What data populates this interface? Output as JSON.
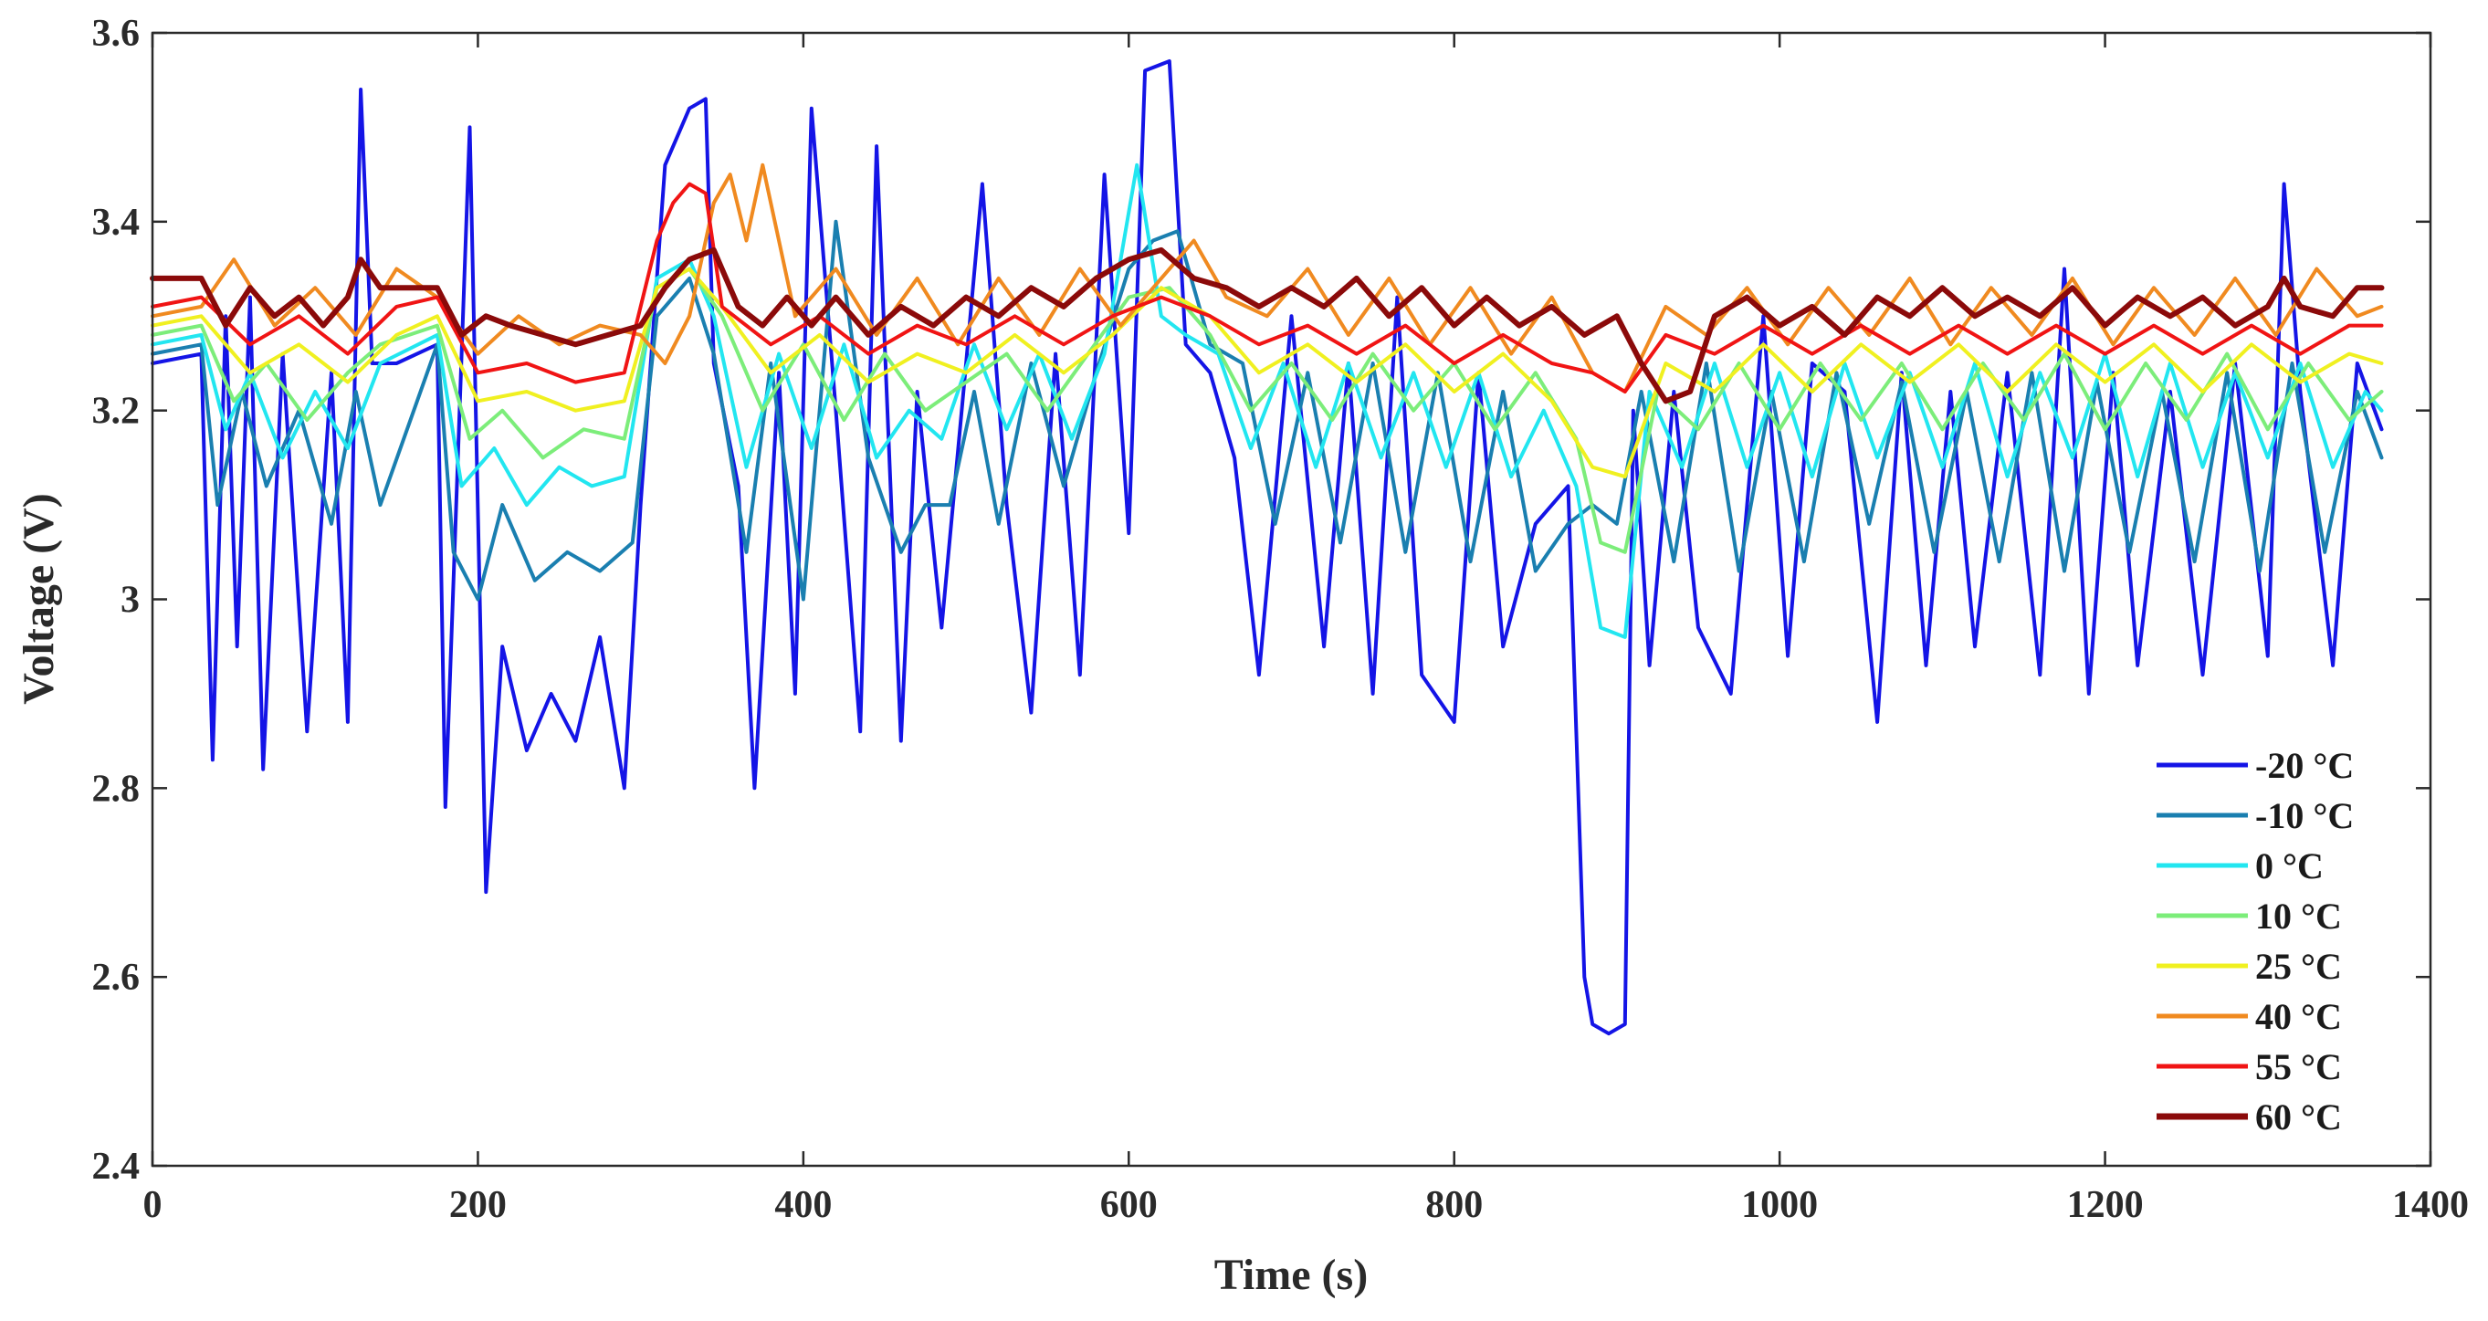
{
  "chart_data": {
    "type": "line",
    "title": "",
    "xlabel": "Time (s)",
    "ylabel": "Voltage (V)",
    "xlim": [
      0,
      1400
    ],
    "ylim": [
      2.4,
      3.6
    ],
    "xticks": [
      0,
      200,
      400,
      600,
      800,
      1000,
      1200,
      1400
    ],
    "yticks": [
      2.4,
      2.6,
      2.8,
      3.0,
      3.2,
      3.4,
      3.6
    ],
    "xtick_labels": [
      "0",
      "200",
      "400",
      "600",
      "800",
      "1000",
      "1200",
      "1400"
    ],
    "ytick_labels": [
      "2.4",
      "2.6",
      "2.8",
      "3",
      "3.2",
      "3.4",
      "3.6"
    ],
    "grid": false,
    "legend_position": "bottom-right",
    "series": [
      {
        "name": "-20 °C",
        "color": "#1414e6",
        "x": [
          0,
          30,
          37,
          45,
          52,
          60,
          68,
          80,
          95,
          110,
          120,
          128,
          135,
          150,
          175,
          180,
          195,
          205,
          215,
          230,
          245,
          260,
          275,
          290,
          300,
          315,
          330,
          340,
          345,
          360,
          370,
          385,
          395,
          405,
          420,
          435,
          445,
          460,
          470,
          485,
          500,
          510,
          525,
          540,
          555,
          570,
          585,
          600,
          610,
          625,
          635,
          650,
          665,
          680,
          700,
          720,
          735,
          750,
          765,
          780,
          800,
          815,
          830,
          850,
          870,
          880,
          885,
          895,
          905,
          910,
          920,
          935,
          950,
          970,
          990,
          1005,
          1020,
          1040,
          1060,
          1075,
          1090,
          1105,
          1120,
          1140,
          1160,
          1175,
          1190,
          1205,
          1220,
          1240,
          1260,
          1280,
          1300,
          1310,
          1320,
          1340,
          1355,
          1370
        ],
        "y": [
          3.25,
          3.26,
          2.83,
          3.3,
          2.95,
          3.32,
          2.82,
          3.26,
          2.86,
          3.24,
          2.87,
          3.54,
          3.25,
          3.25,
          3.27,
          2.78,
          3.5,
          2.69,
          2.95,
          2.84,
          2.9,
          2.85,
          2.96,
          2.8,
          3.1,
          3.46,
          3.52,
          3.53,
          3.25,
          3.12,
          2.8,
          3.24,
          2.9,
          3.52,
          3.2,
          2.86,
          3.48,
          2.85,
          3.22,
          2.97,
          3.25,
          3.44,
          3.1,
          2.88,
          3.26,
          2.92,
          3.45,
          3.07,
          3.56,
          3.57,
          3.27,
          3.24,
          3.15,
          2.92,
          3.3,
          2.95,
          3.25,
          2.9,
          3.32,
          2.92,
          2.87,
          3.24,
          2.95,
          3.08,
          3.12,
          2.6,
          2.55,
          2.54,
          2.55,
          3.2,
          2.93,
          3.22,
          2.97,
          2.9,
          3.3,
          2.94,
          3.25,
          3.22,
          2.87,
          3.24,
          2.93,
          3.22,
          2.95,
          3.24,
          2.92,
          3.35,
          2.9,
          3.24,
          2.93,
          3.22,
          2.92,
          3.25,
          2.94,
          3.44,
          3.22,
          2.93,
          3.25,
          3.18
        ]
      },
      {
        "name": "-10 °C",
        "color": "#1a7fb0",
        "x": [
          0,
          30,
          40,
          55,
          70,
          90,
          110,
          125,
          140,
          175,
          185,
          200,
          215,
          235,
          255,
          275,
          295,
          310,
          330,
          345,
          365,
          380,
          400,
          420,
          440,
          460,
          475,
          490,
          505,
          520,
          540,
          560,
          580,
          600,
          615,
          630,
          650,
          670,
          690,
          710,
          730,
          750,
          770,
          790,
          810,
          830,
          850,
          870,
          885,
          900,
          915,
          935,
          955,
          975,
          995,
          1015,
          1035,
          1055,
          1075,
          1095,
          1115,
          1135,
          1155,
          1175,
          1195,
          1215,
          1235,
          1255,
          1275,
          1295,
          1315,
          1335,
          1355,
          1370
        ],
        "y": [
          3.26,
          3.27,
          3.1,
          3.22,
          3.12,
          3.2,
          3.08,
          3.22,
          3.1,
          3.27,
          3.05,
          3.0,
          3.1,
          3.02,
          3.05,
          3.03,
          3.06,
          3.3,
          3.34,
          3.26,
          3.05,
          3.25,
          3.0,
          3.4,
          3.15,
          3.05,
          3.1,
          3.1,
          3.22,
          3.08,
          3.25,
          3.12,
          3.24,
          3.35,
          3.38,
          3.39,
          3.27,
          3.25,
          3.08,
          3.24,
          3.06,
          3.25,
          3.05,
          3.24,
          3.04,
          3.22,
          3.03,
          3.08,
          3.1,
          3.08,
          3.22,
          3.04,
          3.25,
          3.03,
          3.22,
          3.04,
          3.24,
          3.08,
          3.23,
          3.05,
          3.22,
          3.04,
          3.24,
          3.03,
          3.23,
          3.05,
          3.22,
          3.04,
          3.24,
          3.03,
          3.25,
          3.05,
          3.22,
          3.15
        ]
      },
      {
        "name": "0 °C",
        "color": "#22e6f0",
        "x": [
          0,
          30,
          45,
          60,
          80,
          100,
          120,
          140,
          175,
          190,
          210,
          230,
          250,
          270,
          290,
          310,
          330,
          345,
          365,
          385,
          405,
          425,
          445,
          465,
          485,
          505,
          525,
          545,
          565,
          585,
          605,
          620,
          635,
          655,
          675,
          695,
          715,
          735,
          755,
          775,
          795,
          815,
          835,
          855,
          875,
          890,
          905,
          920,
          940,
          960,
          980,
          1000,
          1020,
          1040,
          1060,
          1080,
          1100,
          1120,
          1140,
          1160,
          1180,
          1200,
          1220,
          1240,
          1260,
          1280,
          1300,
          1320,
          1340,
          1360,
          1370
        ],
        "y": [
          3.27,
          3.28,
          3.18,
          3.24,
          3.15,
          3.22,
          3.16,
          3.25,
          3.28,
          3.12,
          3.16,
          3.1,
          3.14,
          3.12,
          3.13,
          3.34,
          3.36,
          3.3,
          3.14,
          3.26,
          3.16,
          3.27,
          3.15,
          3.2,
          3.17,
          3.27,
          3.18,
          3.26,
          3.17,
          3.26,
          3.46,
          3.3,
          3.28,
          3.26,
          3.16,
          3.25,
          3.14,
          3.25,
          3.15,
          3.24,
          3.14,
          3.24,
          3.13,
          3.2,
          3.12,
          2.97,
          2.96,
          3.22,
          3.14,
          3.25,
          3.14,
          3.24,
          3.13,
          3.25,
          3.15,
          3.24,
          3.14,
          3.25,
          3.13,
          3.24,
          3.15,
          3.26,
          3.13,
          3.25,
          3.14,
          3.24,
          3.15,
          3.25,
          3.14,
          3.22,
          3.2
        ]
      },
      {
        "name": "10 °C",
        "color": "#7ced7a",
        "x": [
          0,
          30,
          50,
          70,
          95,
          120,
          140,
          175,
          195,
          215,
          240,
          265,
          290,
          310,
          330,
          350,
          375,
          400,
          425,
          450,
          475,
          500,
          525,
          550,
          575,
          600,
          625,
          650,
          675,
          700,
          725,
          750,
          775,
          800,
          825,
          850,
          875,
          890,
          905,
          925,
          950,
          975,
          1000,
          1025,
          1050,
          1075,
          1100,
          1125,
          1150,
          1175,
          1200,
          1225,
          1250,
          1275,
          1300,
          1325,
          1350,
          1370
        ],
        "y": [
          3.28,
          3.29,
          3.21,
          3.25,
          3.19,
          3.24,
          3.27,
          3.29,
          3.17,
          3.2,
          3.15,
          3.18,
          3.17,
          3.33,
          3.35,
          3.3,
          3.2,
          3.27,
          3.19,
          3.26,
          3.2,
          3.23,
          3.26,
          3.2,
          3.26,
          3.32,
          3.33,
          3.28,
          3.2,
          3.25,
          3.19,
          3.26,
          3.2,
          3.25,
          3.18,
          3.24,
          3.17,
          3.06,
          3.05,
          3.22,
          3.18,
          3.25,
          3.18,
          3.25,
          3.19,
          3.25,
          3.18,
          3.25,
          3.19,
          3.26,
          3.18,
          3.25,
          3.19,
          3.26,
          3.18,
          3.25,
          3.19,
          3.22
        ]
      },
      {
        "name": "25 °C",
        "color": "#f0f020",
        "x": [
          0,
          30,
          60,
          90,
          120,
          150,
          175,
          200,
          230,
          260,
          290,
          310,
          330,
          350,
          380,
          410,
          440,
          470,
          500,
          530,
          560,
          590,
          620,
          650,
          680,
          710,
          740,
          770,
          800,
          830,
          860,
          885,
          905,
          930,
          960,
          990,
          1020,
          1050,
          1080,
          1110,
          1140,
          1170,
          1200,
          1230,
          1260,
          1290,
          1320,
          1350,
          1370
        ],
        "y": [
          3.29,
          3.3,
          3.24,
          3.27,
          3.23,
          3.28,
          3.3,
          3.21,
          3.22,
          3.2,
          3.21,
          3.33,
          3.35,
          3.31,
          3.24,
          3.28,
          3.23,
          3.26,
          3.24,
          3.28,
          3.24,
          3.28,
          3.33,
          3.3,
          3.24,
          3.27,
          3.23,
          3.27,
          3.22,
          3.26,
          3.21,
          3.14,
          3.13,
          3.25,
          3.22,
          3.27,
          3.22,
          3.27,
          3.23,
          3.27,
          3.22,
          3.27,
          3.23,
          3.27,
          3.22,
          3.27,
          3.23,
          3.26,
          3.25
        ]
      },
      {
        "name": "40 °C",
        "color": "#f08a20",
        "x": [
          0,
          30,
          50,
          75,
          100,
          125,
          150,
          175,
          200,
          225,
          250,
          275,
          300,
          315,
          330,
          345,
          355,
          365,
          375,
          395,
          420,
          445,
          470,
          495,
          520,
          545,
          570,
          595,
          620,
          640,
          660,
          685,
          710,
          735,
          760,
          785,
          810,
          835,
          860,
          885,
          905,
          930,
          955,
          980,
          1005,
          1030,
          1055,
          1080,
          1105,
          1130,
          1155,
          1180,
          1205,
          1230,
          1255,
          1280,
          1305,
          1330,
          1355,
          1370
        ],
        "y": [
          3.3,
          3.31,
          3.36,
          3.29,
          3.33,
          3.28,
          3.35,
          3.32,
          3.26,
          3.3,
          3.27,
          3.29,
          3.28,
          3.25,
          3.3,
          3.42,
          3.45,
          3.38,
          3.46,
          3.3,
          3.35,
          3.28,
          3.34,
          3.27,
          3.34,
          3.28,
          3.35,
          3.29,
          3.34,
          3.38,
          3.32,
          3.3,
          3.35,
          3.28,
          3.34,
          3.27,
          3.33,
          3.26,
          3.32,
          3.24,
          3.22,
          3.31,
          3.28,
          3.33,
          3.27,
          3.33,
          3.28,
          3.34,
          3.27,
          3.33,
          3.28,
          3.34,
          3.27,
          3.33,
          3.28,
          3.34,
          3.28,
          3.35,
          3.3,
          3.31
        ]
      },
      {
        "name": "55 °C",
        "color": "#f01414",
        "x": [
          0,
          30,
          60,
          90,
          120,
          150,
          175,
          200,
          230,
          260,
          290,
          310,
          320,
          330,
          340,
          350,
          380,
          410,
          440,
          470,
          500,
          530,
          560,
          590,
          620,
          650,
          680,
          710,
          740,
          770,
          800,
          830,
          860,
          885,
          905,
          930,
          960,
          990,
          1020,
          1050,
          1080,
          1110,
          1140,
          1170,
          1200,
          1230,
          1260,
          1290,
          1320,
          1350,
          1370
        ],
        "y": [
          3.31,
          3.32,
          3.27,
          3.3,
          3.26,
          3.31,
          3.32,
          3.24,
          3.25,
          3.23,
          3.24,
          3.38,
          3.42,
          3.44,
          3.43,
          3.31,
          3.27,
          3.3,
          3.26,
          3.29,
          3.27,
          3.3,
          3.27,
          3.3,
          3.32,
          3.3,
          3.27,
          3.29,
          3.26,
          3.29,
          3.25,
          3.28,
          3.25,
          3.24,
          3.22,
          3.28,
          3.26,
          3.29,
          3.26,
          3.29,
          3.26,
          3.29,
          3.26,
          3.29,
          3.26,
          3.29,
          3.26,
          3.29,
          3.26,
          3.29,
          3.29
        ]
      },
      {
        "name": "60 °C",
        "color": "#8b0a0a",
        "x": [
          0,
          30,
          45,
          60,
          75,
          90,
          105,
          120,
          128,
          140,
          175,
          190,
          205,
          220,
          240,
          260,
          280,
          300,
          315,
          330,
          345,
          360,
          375,
          390,
          405,
          420,
          440,
          460,
          480,
          500,
          520,
          540,
          560,
          580,
          600,
          620,
          640,
          660,
          680,
          700,
          720,
          740,
          760,
          780,
          800,
          820,
          840,
          860,
          880,
          900,
          915,
          930,
          945,
          960,
          980,
          1000,
          1020,
          1040,
          1060,
          1080,
          1100,
          1120,
          1140,
          1160,
          1180,
          1200,
          1220,
          1240,
          1260,
          1280,
          1300,
          1310,
          1320,
          1340,
          1355,
          1370
        ],
        "y": [
          3.34,
          3.34,
          3.29,
          3.33,
          3.3,
          3.32,
          3.29,
          3.32,
          3.36,
          3.33,
          3.33,
          3.28,
          3.3,
          3.29,
          3.28,
          3.27,
          3.28,
          3.29,
          3.33,
          3.36,
          3.37,
          3.31,
          3.29,
          3.32,
          3.29,
          3.32,
          3.28,
          3.31,
          3.29,
          3.32,
          3.3,
          3.33,
          3.31,
          3.34,
          3.36,
          3.37,
          3.34,
          3.33,
          3.31,
          3.33,
          3.31,
          3.34,
          3.3,
          3.33,
          3.29,
          3.32,
          3.29,
          3.31,
          3.28,
          3.3,
          3.25,
          3.21,
          3.22,
          3.3,
          3.32,
          3.29,
          3.31,
          3.28,
          3.32,
          3.3,
          3.33,
          3.3,
          3.32,
          3.3,
          3.33,
          3.29,
          3.32,
          3.3,
          3.32,
          3.29,
          3.31,
          3.34,
          3.31,
          3.3,
          3.33,
          3.33
        ]
      }
    ]
  }
}
